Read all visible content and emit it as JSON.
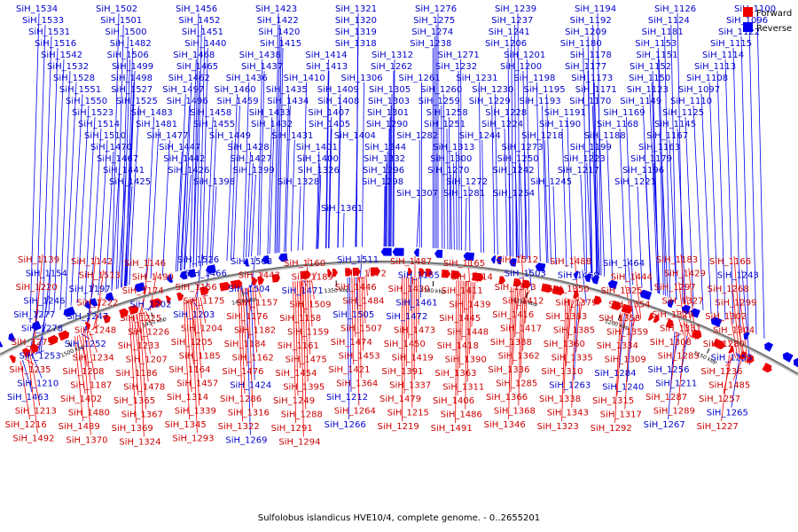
{
  "caption": "Sulfolobus islandicus HVE10/4, complete genome. - 0..2655201",
  "legend": [
    {
      "label": "Forward",
      "color": "#ee0000"
    },
    {
      "label": "Reverse",
      "color": "#0000ee"
    }
  ],
  "scale_ticks": [
    "1500 kbp",
    "1450 kbp",
    "1400 kbp",
    "1350 kbp",
    "1300 kbp",
    "1250 kbp",
    "1200 kbp",
    "1150 kbp"
  ],
  "reverse_labels": [
    [
      "SiH_1534",
      "SiH_1502",
      "SiH_1456",
      "SiH_1423",
      "SiH_1321",
      "SiH_1276",
      "SiH_1239",
      "SiH_1194",
      "SiH_1126",
      "SiH_1100"
    ],
    [
      "SiH_1533",
      "SiH_1501",
      "SiH_1452",
      "SiH_1422",
      "SiH_1320",
      "SiH_1275",
      "SiH_1237",
      "SiH_1192",
      "SiH_1124",
      "SiH_1096"
    ],
    [
      "SiH_1531",
      "SiH_1500",
      "SiH_1451",
      "SiH_1420",
      "SiH_1319",
      "SiH_1274",
      "SiH_1241",
      "SiH_1209",
      "SiH_1181",
      "SiH_1122"
    ],
    [
      "SiH_1516",
      "SiH_1482",
      "SiH_1440",
      "SiH_1415",
      "SiH_1318",
      "SiH_1238",
      "SiH_1206",
      "SiH_1180",
      "SiH_1153",
      "SiH_1115"
    ],
    [
      "SiH_1542",
      "SiH_1506",
      "SiH_1468",
      "SiH_1438",
      "SiH_1414",
      "SiH_1312",
      "SiH_1271",
      "SiH_1201",
      "SiH_1178",
      "SiH_1151",
      "SiH_1114"
    ],
    [
      "SiH_1532",
      "SiH_1499",
      "SiH_1465",
      "SiH_1437",
      "SiH_1413",
      "SiH_1262",
      "SiH_1232",
      "SiH_1200",
      "SiH_1177",
      "SiH_1152",
      "SiH_1113"
    ],
    [
      "SiH_1528",
      "SiH_1498",
      "SiH_1462",
      "SiH_1436",
      "SiH_1410",
      "SiH_1306",
      "SiH_1261",
      "SiH_1231",
      "SiH_1198",
      "SiH_1173",
      "SiH_1150",
      "SiH_1108"
    ],
    [
      "SiH_1551",
      "SiH_1527",
      "SiH_1497",
      "SiH_1460",
      "SiH_1435",
      "SiH_1409",
      "SiH_1305",
      "SiH_1260",
      "SiH_1230",
      "SiH_1195",
      "SiH_1171",
      "SiH_1123",
      "SiH_1097"
    ],
    [
      "SiH_1550",
      "SiH_1525",
      "SiH_1496",
      "SiH_1459",
      "SiH_1434",
      "SiH_1408",
      "SiH_1303",
      "SiH_1259",
      "SiH_1229",
      "SiH_1193",
      "SiH_1170",
      "SiH_1149",
      "SiH_1110"
    ],
    [
      "SiH_1523",
      "SiH_1483",
      "SiH_1458",
      "SiH_1433",
      "SiH_1407",
      "SiH_1301",
      "SiH_1258",
      "SiH_1228",
      "SiH_1191",
      "SiH_1169",
      "SiH_1125"
    ],
    [
      "SiH_1514",
      "SiH_1481",
      "SiH_1455",
      "SiH_1432",
      "SiH_1405",
      "SiH_1290",
      "SiH_1251",
      "SiH_1224",
      "SiH_1190",
      "SiH_1168",
      "SiH_1145"
    ],
    [
      "SiH_1510",
      "SiH_1477",
      "SiH_1449",
      "SiH_1431",
      "SiH_1404",
      "SiH_1282",
      "SiH_1244",
      "SiH_1218",
      "SiH_1188",
      "SiH_1167"
    ],
    [
      "SiH_1470",
      "SiH_1447",
      "SiH_1428",
      "SiH_1401",
      "SiH_1344",
      "SiH_1313",
      "SiH_1273",
      "SiH_1199",
      "SiH_1163"
    ],
    [
      "SiH_1467",
      "SiH_1442",
      "SiH_1427",
      "SiH_1400",
      "SiH_1332",
      "SiH_1300",
      "SiH_1250",
      "SiH_1223",
      "SiH_1179"
    ],
    [
      "SiH_1441",
      "SiH_1426",
      "SiH_1399",
      "SiH_1326",
      "SiH_1296",
      "SiH_1270",
      "SiH_1242",
      "SiH_1217",
      "SiH_1196"
    ],
    [
      "SiH_1425",
      "SiH_1398",
      "SiH_1328",
      "SiH_1298",
      "SiH_1272",
      "SiH_1245",
      "SiH_1221"
    ],
    [
      "SiH_1307",
      "SiH_1281",
      "SiH_1254"
    ],
    [
      "SiH_1361"
    ]
  ],
  "lower_labels": [
    {
      "t": "SiH_1139",
      "s": "f"
    },
    {
      "t": "SiH_1142",
      "s": "f"
    },
    {
      "t": "SiH_1146",
      "s": "f"
    },
    {
      "t": "SiH_1526",
      "s": "r"
    },
    {
      "t": "SiH_1508",
      "s": "r"
    },
    {
      "t": "SiH_1160",
      "s": "f"
    },
    {
      "t": "SiH_1511",
      "s": "r"
    },
    {
      "t": "SiH_1487",
      "s": "f"
    },
    {
      "t": "SiH_1165",
      "s": "f"
    },
    {
      "t": "SiH_1512",
      "s": "f"
    },
    {
      "t": "SiH_1488",
      "s": "f"
    },
    {
      "t": "SiH_1464",
      "s": "r"
    },
    {
      "t": "SiH_1183",
      "s": "f"
    },
    {
      "t": "SiH_1166",
      "s": "f"
    },
    {
      "t": "SiH_1154",
      "s": "r"
    },
    {
      "t": "SiH_1513",
      "s": "f"
    },
    {
      "t": "SiH_1490",
      "s": "f"
    },
    {
      "t": "SiH_1466",
      "s": "r"
    },
    {
      "t": "SiH_1443",
      "s": "f"
    },
    {
      "t": "SiH_1189",
      "s": "f"
    },
    {
      "t": "SiH_1172",
      "s": "f"
    },
    {
      "t": "SiH_1155",
      "s": "r"
    },
    {
      "t": "SiH_1214",
      "s": "f"
    },
    {
      "t": "SiH_1503",
      "s": "r"
    },
    {
      "t": "SiH_1469",
      "s": "r"
    },
    {
      "t": "SiH_1444",
      "s": "f"
    },
    {
      "t": "SiH_1429",
      "s": "f"
    },
    {
      "t": "SiH_1243",
      "s": "r"
    },
    {
      "t": "SiH_1220",
      "s": "f"
    },
    {
      "t": "SiH_1197",
      "s": "r"
    },
    {
      "t": "SiH_1174",
      "s": "f"
    },
    {
      "t": "SiH_1156",
      "s": "f"
    },
    {
      "t": "SiH_1504",
      "s": "r"
    },
    {
      "t": "SiH_1471",
      "s": "r"
    },
    {
      "t": "SiH_1446",
      "s": "f"
    },
    {
      "t": "SiH_1430",
      "s": "f"
    },
    {
      "t": "SiH_1411",
      "s": "f"
    },
    {
      "t": "SiH_1373",
      "s": "f"
    },
    {
      "t": "SiH_1350",
      "s": "f"
    },
    {
      "t": "SiH_1325",
      "s": "f"
    },
    {
      "t": "SiH_1297",
      "s": "f"
    },
    {
      "t": "SiH_1268",
      "s": "f"
    },
    {
      "t": "SiH_1246",
      "s": "r"
    },
    {
      "t": "SiH_1222",
      "s": "f"
    },
    {
      "t": "SiH_1202",
      "s": "r"
    },
    {
      "t": "SiH_1175",
      "s": "f"
    },
    {
      "t": "SiH_1157",
      "s": "f"
    },
    {
      "t": "SiH_1509",
      "s": "f"
    },
    {
      "t": "SiH_1484",
      "s": "f"
    },
    {
      "t": "SiH_1461",
      "s": "r"
    },
    {
      "t": "SiH_1439",
      "s": "f"
    },
    {
      "t": "SiH_1412",
      "s": "f"
    },
    {
      "t": "SiH_1379",
      "s": "f"
    },
    {
      "t": "SiH_1354",
      "s": "f"
    },
    {
      "t": "SiH_1327",
      "s": "f"
    },
    {
      "t": "SiH_1299",
      "s": "f"
    },
    {
      "t": "SiH_1277",
      "s": "r"
    },
    {
      "t": "SiH_1247",
      "s": "r"
    },
    {
      "t": "SiH_1225",
      "s": "f"
    },
    {
      "t": "SiH_1203",
      "s": "r"
    },
    {
      "t": "SiH_1176",
      "s": "f"
    },
    {
      "t": "SiH_1158",
      "s": "f"
    },
    {
      "t": "SiH_1505",
      "s": "r"
    },
    {
      "t": "SiH_1472",
      "s": "r"
    },
    {
      "t": "SiH_1445",
      "s": "f"
    },
    {
      "t": "SiH_1416",
      "s": "f"
    },
    {
      "t": "SiH_1383",
      "s": "f"
    },
    {
      "t": "SiH_1358",
      "s": "f"
    },
    {
      "t": "SiH_1329",
      "s": "f"
    },
    {
      "t": "SiH_1302",
      "s": "f"
    },
    {
      "t": "SiH_1278",
      "s": "r"
    },
    {
      "t": "SiH_1248",
      "s": "f"
    },
    {
      "t": "SiH_1226",
      "s": "f"
    },
    {
      "t": "SiH_1204",
      "s": "f"
    },
    {
      "t": "SiH_1182",
      "s": "f"
    },
    {
      "t": "SiH_1159",
      "s": "f"
    },
    {
      "t": "SiH_1507",
      "s": "f"
    },
    {
      "t": "SiH_1473",
      "s": "f"
    },
    {
      "t": "SiH_1448",
      "s": "f"
    },
    {
      "t": "SiH_1417",
      "s": "f"
    },
    {
      "t": "SiH_1385",
      "s": "f"
    },
    {
      "t": "SiH_1359",
      "s": "f"
    },
    {
      "t": "SiH_1331",
      "s": "f"
    },
    {
      "t": "SiH_1304",
      "s": "f"
    },
    {
      "t": "SiH_1279",
      "s": "f"
    },
    {
      "t": "SiH_1252",
      "s": "r"
    },
    {
      "t": "SiH_1233",
      "s": "f"
    },
    {
      "t": "SiH_1205",
      "s": "f"
    },
    {
      "t": "SiH_1184",
      "s": "f"
    },
    {
      "t": "SiH_1161",
      "s": "f"
    },
    {
      "t": "SiH_1474",
      "s": "f"
    },
    {
      "t": "SiH_1450",
      "s": "f"
    },
    {
      "t": "SiH_1418",
      "s": "f"
    },
    {
      "t": "SiH_1388",
      "s": "f"
    },
    {
      "t": "SiH_1360",
      "s": "f"
    },
    {
      "t": "SiH_1334",
      "s": "f"
    },
    {
      "t": "SiH_1308",
      "s": "f"
    },
    {
      "t": "SiH_1280",
      "s": "f"
    },
    {
      "t": "SiH_1253",
      "s": "r"
    },
    {
      "t": "SiH_1234",
      "s": "f"
    },
    {
      "t": "SiH_1207",
      "s": "f"
    },
    {
      "t": "SiH_1185",
      "s": "f"
    },
    {
      "t": "SiH_1162",
      "s": "f"
    },
    {
      "t": "SiH_1475",
      "s": "f"
    },
    {
      "t": "SiH_1453",
      "s": "f"
    },
    {
      "t": "SiH_1419",
      "s": "f"
    },
    {
      "t": "SiH_1390",
      "s": "f"
    },
    {
      "t": "SiH_1362",
      "s": "f"
    },
    {
      "t": "SiH_1335",
      "s": "f"
    },
    {
      "t": "SiH_1309",
      "s": "f"
    },
    {
      "t": "SiH_1283",
      "s": "f"
    },
    {
      "t": "SiH_1255",
      "s": "r"
    },
    {
      "t": "SiH_1235",
      "s": "f"
    },
    {
      "t": "SiH_1208",
      "s": "f"
    },
    {
      "t": "SiH_1186",
      "s": "f"
    },
    {
      "t": "SiH_1164",
      "s": "f"
    },
    {
      "t": "SiH_1476",
      "s": "f"
    },
    {
      "t": "SiH_1454",
      "s": "f"
    },
    {
      "t": "SiH_1421",
      "s": "f"
    },
    {
      "t": "SiH_1391",
      "s": "f"
    },
    {
      "t": "SiH_1363",
      "s": "f"
    },
    {
      "t": "SiH_1336",
      "s": "f"
    },
    {
      "t": "SiH_1310",
      "s": "f"
    },
    {
      "t": "SiH_1284",
      "s": "r"
    },
    {
      "t": "SiH_1256",
      "s": "r"
    },
    {
      "t": "SiH_1236",
      "s": "f"
    },
    {
      "t": "SiH_1210",
      "s": "r"
    },
    {
      "t": "SiH_1187",
      "s": "f"
    },
    {
      "t": "SiH_1478",
      "s": "f"
    },
    {
      "t": "SiH_1457",
      "s": "f"
    },
    {
      "t": "SiH_1424",
      "s": "r"
    },
    {
      "t": "SiH_1395",
      "s": "f"
    },
    {
      "t": "SiH_1364",
      "s": "f"
    },
    {
      "t": "SiH_1337",
      "s": "f"
    },
    {
      "t": "SiH_1311",
      "s": "f"
    },
    {
      "t": "SiH_1285",
      "s": "f"
    },
    {
      "t": "SiH_1263",
      "s": "r"
    },
    {
      "t": "SiH_1240",
      "s": "r"
    },
    {
      "t": "SiH_1211",
      "s": "r"
    },
    {
      "t": "SiH_1485",
      "s": "f"
    },
    {
      "t": "SiH_1463",
      "s": "r"
    },
    {
      "t": "SiH_1402",
      "s": "f"
    },
    {
      "t": "SiH_1365",
      "s": "f"
    },
    {
      "t": "SiH_1314",
      "s": "f"
    },
    {
      "t": "SiH_1286",
      "s": "f"
    },
    {
      "t": "SiH_1249",
      "s": "f"
    },
    {
      "t": "SiH_1212",
      "s": "r"
    },
    {
      "t": "SiH_1479",
      "s": "f"
    },
    {
      "t": "SiH_1406",
      "s": "f"
    },
    {
      "t": "SiH_1366",
      "s": "f"
    },
    {
      "t": "SiH_1338",
      "s": "f"
    },
    {
      "t": "SiH_1315",
      "s": "f"
    },
    {
      "t": "SiH_1287",
      "s": "f"
    },
    {
      "t": "SiH_1257",
      "s": "f"
    },
    {
      "t": "SiH_1213",
      "s": "f"
    },
    {
      "t": "SiH_1480",
      "s": "f"
    },
    {
      "t": "SiH_1367",
      "s": "f"
    },
    {
      "t": "SiH_1339",
      "s": "f"
    },
    {
      "t": "SiH_1316",
      "s": "f"
    },
    {
      "t": "SiH_1288",
      "s": "f"
    },
    {
      "t": "SiH_1264",
      "s": "f"
    },
    {
      "t": "SiH_1215",
      "s": "f"
    },
    {
      "t": "SiH_1486",
      "s": "f"
    },
    {
      "t": "SiH_1368",
      "s": "f"
    },
    {
      "t": "SiH_1343",
      "s": "f"
    },
    {
      "t": "SiH_1317",
      "s": "f"
    },
    {
      "t": "SiH_1289",
      "s": "f"
    },
    {
      "t": "SiH_1265",
      "s": "r"
    },
    {
      "t": "SiH_1216",
      "s": "f"
    },
    {
      "t": "SiH_1489",
      "s": "f"
    },
    {
      "t": "SiH_1369",
      "s": "f"
    },
    {
      "t": "SiH_1345",
      "s": "f"
    },
    {
      "t": "SiH_1322",
      "s": "f"
    },
    {
      "t": "SiH_1291",
      "s": "f"
    },
    {
      "t": "SiH_1266",
      "s": "r"
    },
    {
      "t": "SiH_1219",
      "s": "f"
    },
    {
      "t": "SiH_1491",
      "s": "f"
    },
    {
      "t": "SiH_1346",
      "s": "f"
    },
    {
      "t": "SiH_1323",
      "s": "f"
    },
    {
      "t": "SiH_1292",
      "s": "f"
    },
    {
      "t": "SiH_1267",
      "s": "r"
    },
    {
      "t": "SiH_1227",
      "s": "f"
    },
    {
      "t": "SiH_1492",
      "s": "f"
    },
    {
      "t": "SiH_1370",
      "s": "f"
    },
    {
      "t": "SiH_1324",
      "s": "f"
    },
    {
      "t": "SiH_1293",
      "s": "f"
    },
    {
      "t": "SiH_1269",
      "s": "r"
    },
    {
      "t": "SiH_1294",
      "s": "f"
    }
  ]
}
